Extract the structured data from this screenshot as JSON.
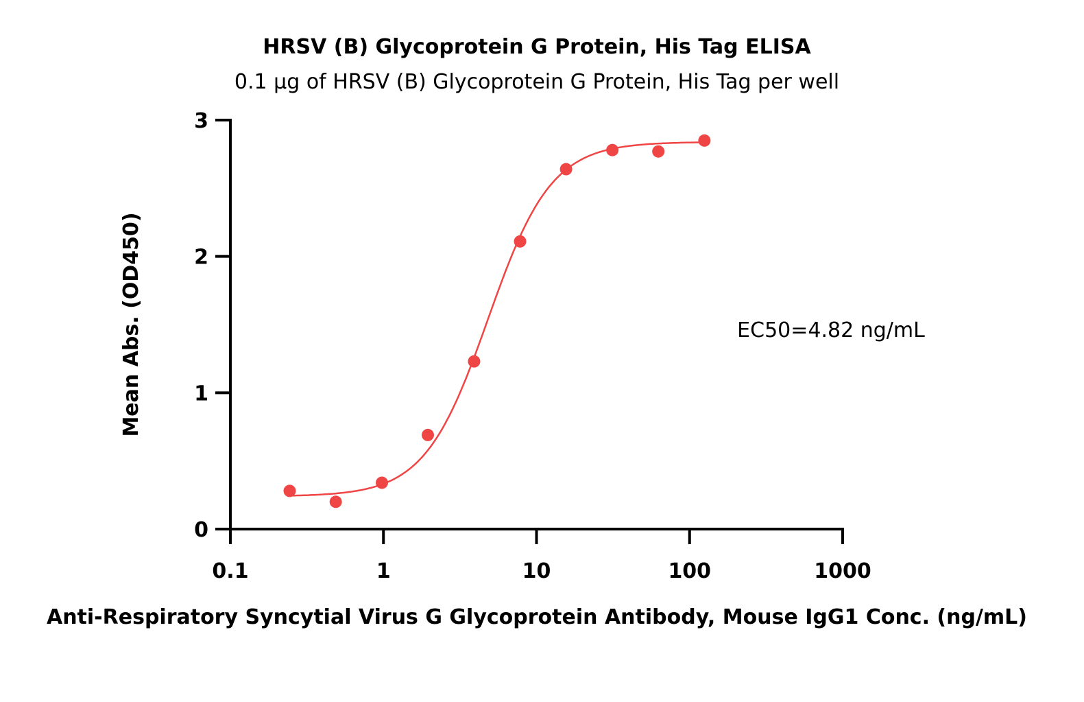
{
  "chart_data": {
    "type": "scatter",
    "title": "HRSV (B) Glycoprotein G Protein, His Tag ELISA",
    "subtitle": "0.1 μg of HRSV (B) Glycoprotein G Protein, His Tag per well",
    "xlabel": "Anti-Respiratory Syncytial Virus G Glycoprotein Antibody, Mouse IgG1 Conc. (ng/mL)",
    "ylabel": "Mean Abs. (OD450)",
    "x_scale": "log",
    "xlim": [
      0.1,
      1000
    ],
    "ylim": [
      0,
      3
    ],
    "x_ticks": [
      0.1,
      1,
      10,
      100,
      1000
    ],
    "x_tick_labels": [
      "0.1",
      "1",
      "10",
      "100",
      "1000"
    ],
    "y_ticks": [
      0,
      1,
      2,
      3
    ],
    "y_tick_labels": [
      "0",
      "1",
      "2",
      "3"
    ],
    "grid": false,
    "annotation": "EC50=4.82 ng/mL",
    "color": "#f04545",
    "series": [
      {
        "x": [
          0.244,
          0.488,
          0.977,
          1.95,
          3.91,
          7.81,
          15.6,
          31.3,
          62.5,
          125
        ],
        "y": [
          0.28,
          0.2,
          0.34,
          0.69,
          1.23,
          2.11,
          2.64,
          2.78,
          2.77,
          2.85
        ]
      }
    ],
    "fit": {
      "model": "4PL",
      "bottom": 0.24,
      "top": 2.84,
      "ec50": 4.82,
      "hill": 2.1,
      "x_range": [
        0.244,
        125
      ]
    }
  }
}
